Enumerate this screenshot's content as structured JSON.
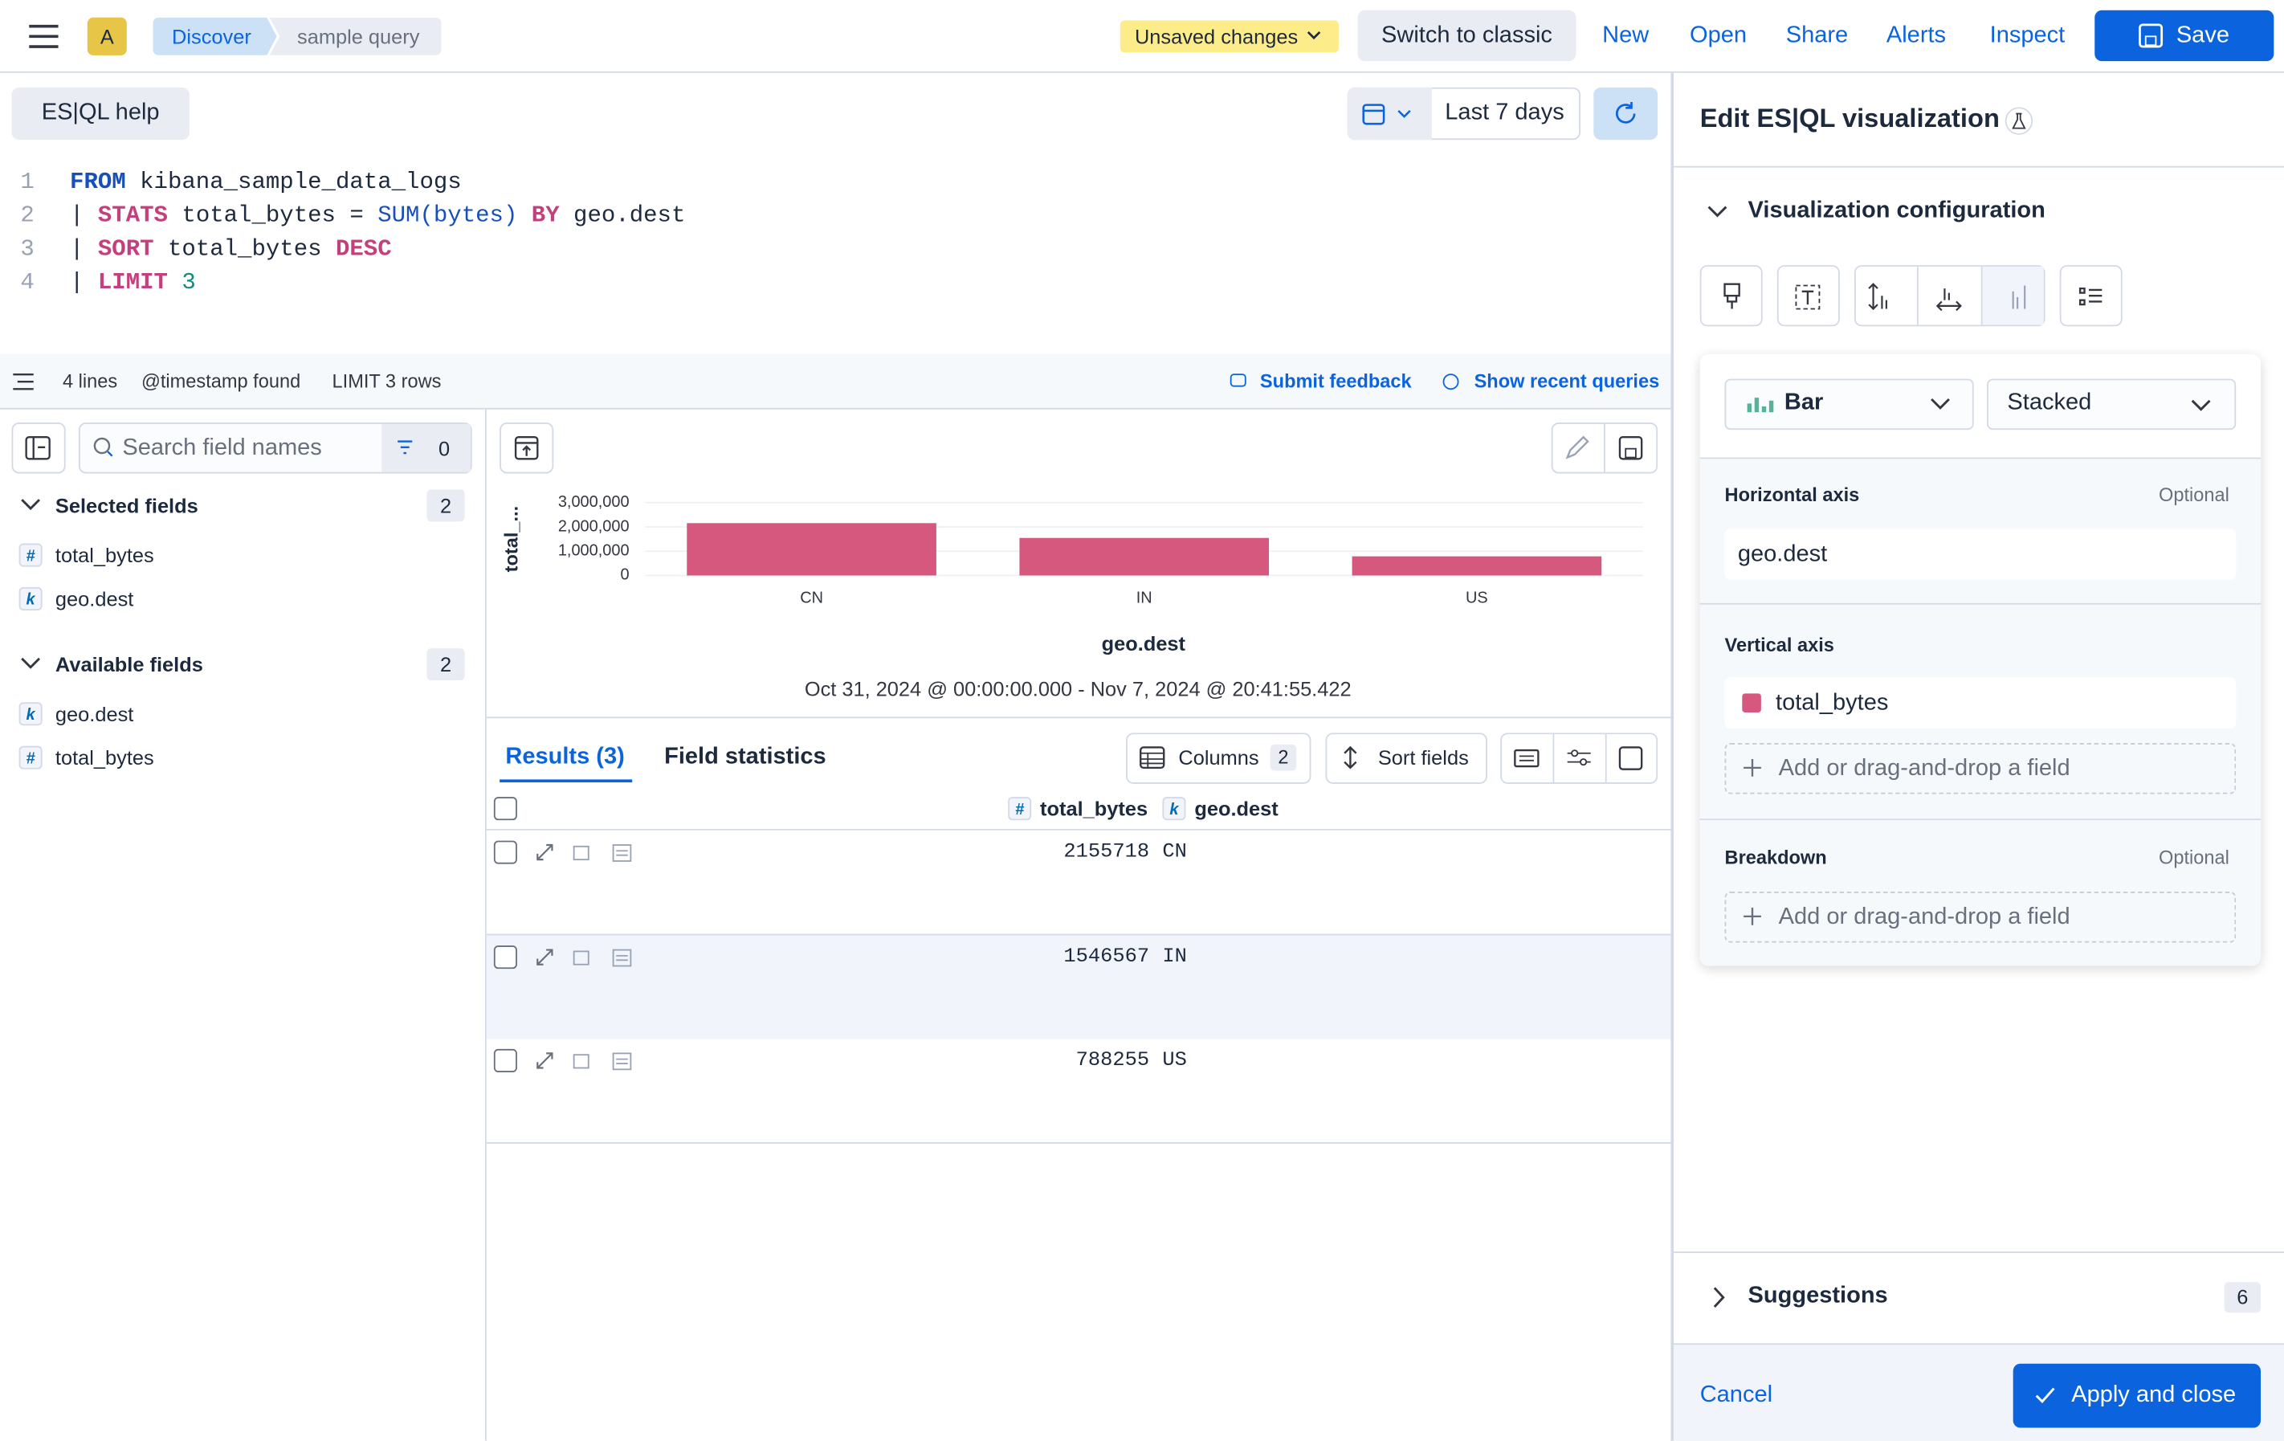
{
  "header": {
    "avatar": "A",
    "breadcrumbs": [
      "Discover",
      "sample query"
    ],
    "unsaved": "Unsaved changes",
    "switch": "Switch to classic",
    "nav": [
      "New",
      "Open",
      "Share",
      "Alerts",
      "Inspect"
    ],
    "save": "Save"
  },
  "query": {
    "help": "ES|QL help",
    "time": "Last 7 days",
    "line_numbers": [
      "1",
      "2",
      "3",
      "4"
    ],
    "lines": [
      [
        "FROM",
        " kibana_sample_data_logs"
      ],
      [
        "| ",
        "STATS",
        " total_bytes = ",
        "SUM(bytes)",
        " BY",
        " geo.dest"
      ],
      [
        "| ",
        "SORT",
        " total_bytes ",
        "DESC"
      ],
      [
        "| ",
        "LIMIT",
        " 3"
      ]
    ],
    "status": [
      "4 lines",
      "@timestamp found",
      "LIMIT 3 rows"
    ],
    "feedback": "Submit feedback",
    "recent": "Show recent queries"
  },
  "sidebar": {
    "search": "Search field names",
    "filter_count": "0",
    "groups": [
      {
        "title": "Selected fields",
        "count": "2",
        "fields": [
          {
            "icon": "#",
            "name": "total_bytes"
          },
          {
            "icon": "k",
            "name": "geo.dest"
          }
        ]
      },
      {
        "title": "Available fields",
        "count": "2",
        "fields": [
          {
            "icon": "k",
            "name": "geo.dest"
          },
          {
            "icon": "#",
            "name": "total_bytes"
          }
        ]
      }
    ]
  },
  "chart_data": {
    "type": "bar",
    "x_label": "geo.dest",
    "y_label": "total_...",
    "subtitle": "Oct 31, 2024 @ 00:00:00.000 - Nov 7, 2024 @ 20:41:55.422",
    "categories": [
      "CN",
      "IN",
      "US"
    ],
    "values": [
      2155718,
      1546567,
      788255
    ],
    "color": "#d6587f",
    "ylim": [
      0,
      3000000
    ],
    "yticks": [
      0,
      {
        "value": 1000000,
        "label": "1,000,000"
      },
      {
        "value": 2000000,
        "label": "2,000,000"
      },
      {
        "value": 3000000,
        "label": "3,000,000"
      }
    ],
    "grid": true
  },
  "results": {
    "tabs": [
      "Results (3)",
      "Field statistics"
    ],
    "columns": "Columns",
    "columns_count": "2",
    "sort": "Sort fields",
    "table": {
      "header": [
        {
          "icon": "#",
          "name": "total_bytes"
        },
        {
          "icon": "k",
          "name": "geo.dest"
        }
      ],
      "rows": [
        [
          "2155718",
          "CN"
        ],
        [
          "1546567",
          "IN"
        ],
        [
          "788255",
          "US"
        ]
      ]
    }
  },
  "panel": {
    "title": "Edit ES|QL visualization",
    "config": "Visualization configuration",
    "chart_type": "Bar",
    "mode": "Stacked",
    "horizontal": {
      "label": "Horizontal axis",
      "optional": "Optional",
      "field": "geo.dest"
    },
    "vertical": {
      "label": "Vertical axis",
      "field": "total_bytes",
      "add": "Add or drag-and-drop a field"
    },
    "breakdown": {
      "label": "Breakdown",
      "optional": "Optional",
      "add": "Add or drag-and-drop a field"
    },
    "suggestions": "Suggestions",
    "suggestions_count": "6",
    "cancel": "Cancel",
    "apply": "Apply and close"
  }
}
